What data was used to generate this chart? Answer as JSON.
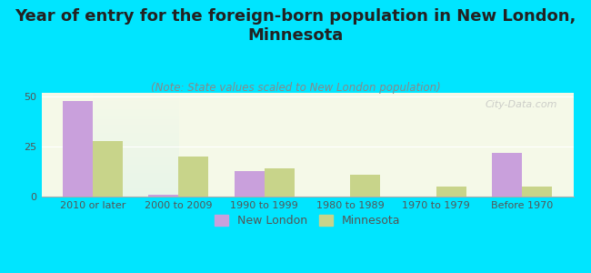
{
  "categories": [
    "2010 or later",
    "2000 to 2009",
    "1990 to 1999",
    "1980 to 1989",
    "1970 to 1979",
    "Before 1970"
  ],
  "new_london": [
    48,
    1,
    13,
    0,
    0,
    22
  ],
  "minnesota": [
    28,
    20,
    14,
    11,
    5,
    5
  ],
  "new_london_color": "#c9a0dc",
  "minnesota_color": "#c8d48a",
  "title": "Year of entry for the foreign-born population in New London,\nMinnesota",
  "subtitle": "(Note: State values scaled to New London population)",
  "ylabel_ticks": [
    0,
    25,
    50
  ],
  "background_color": "#00e5ff",
  "plot_bg_top": "#e8f5e9",
  "plot_bg_bottom": "#f5f9e8",
  "watermark": "City-Data.com",
  "bar_width": 0.35,
  "ylim": [
    0,
    52
  ],
  "title_fontsize": 13,
  "subtitle_fontsize": 8.5,
  "tick_fontsize": 8,
  "legend_fontsize": 9
}
